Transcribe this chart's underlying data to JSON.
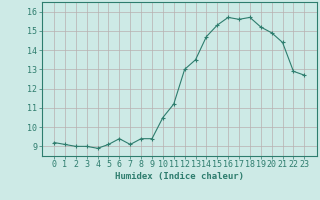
{
  "title": "",
  "xlabel": "Humidex (Indice chaleur)",
  "x": [
    0,
    1,
    2,
    3,
    4,
    5,
    6,
    7,
    8,
    9,
    10,
    11,
    12,
    13,
    14,
    15,
    16,
    17,
    18,
    19,
    20,
    21,
    22,
    23
  ],
  "y": [
    9.2,
    9.1,
    9.0,
    9.0,
    8.9,
    9.1,
    9.4,
    9.1,
    9.4,
    9.4,
    10.5,
    11.2,
    13.0,
    13.5,
    14.7,
    15.3,
    15.7,
    15.6,
    15.7,
    15.2,
    14.9,
    14.4,
    12.9,
    12.7
  ],
  "line_color": "#2e7d6e",
  "marker": "+",
  "markersize": 3.5,
  "linewidth": 0.8,
  "bg_color": "#cdeae6",
  "grid_color": "#b8b0b0",
  "axes_color": "#2e7d6e",
  "tick_color": "#2e7d6e",
  "label_color": "#2e7d6e",
  "ylim": [
    8.5,
    16.5
  ],
  "yticks": [
    9,
    10,
    11,
    12,
    13,
    14,
    15,
    16
  ],
  "xticks": [
    0,
    1,
    2,
    3,
    4,
    5,
    6,
    7,
    8,
    9,
    10,
    11,
    12,
    13,
    14,
    15,
    16,
    17,
    18,
    19,
    20,
    21,
    22,
    23
  ],
  "xlabel_fontsize": 6.5,
  "tick_fontsize": 6.0,
  "ylabel_fontsize": 6.0
}
